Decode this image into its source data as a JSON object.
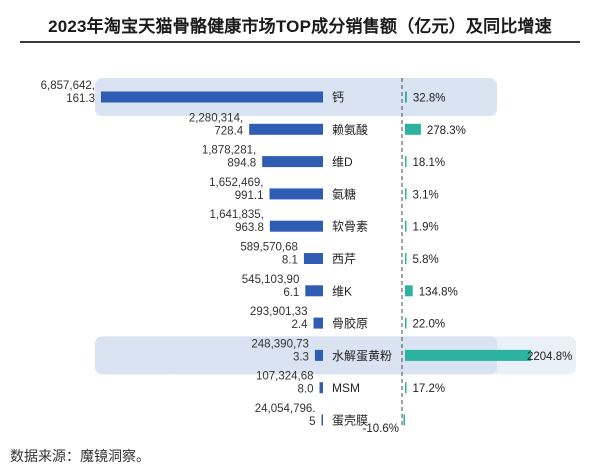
{
  "title": "2023年淘宝天猫骨骼健康市场TOP成分销售额（亿元）及同比增速",
  "footnote": "数据来源：魔镜洞察。",
  "colors": {
    "sales_bar": "#2f5db3",
    "growth_bar": "#2bb3a0",
    "highlight": "#d9e3f1",
    "axis": "#4a4a4a"
  },
  "chart_data": {
    "type": "bar",
    "title": "2023年淘宝天猫骨骼健康市场TOP成分销售额（亿元）及同比增速",
    "categories": [
      "钙",
      "赖氨酸",
      "维D",
      "氨糖",
      "软骨素",
      "西芹",
      "维K",
      "骨胶原",
      "水解蛋黄粉",
      "MSM",
      "蛋壳膜"
    ],
    "highlighted": [
      "钙",
      "水解蛋黄粉"
    ],
    "series": [
      {
        "name": "销售额",
        "values": [
          6857642161.3,
          2280314728.4,
          1878281894.8,
          1652469991.1,
          1641835963.8,
          589570688.1,
          545103906.1,
          293901332.4,
          248390733.3,
          107324688.0,
          24054796.5
        ],
        "labels": [
          [
            "6,857,642,",
            "161.3"
          ],
          [
            "2,280,314,",
            "728.4"
          ],
          [
            "1,878,281,",
            "894.8"
          ],
          [
            "1,652,469,",
            "991.1"
          ],
          [
            "1,641,835,",
            "963.8"
          ],
          [
            "589,570,68",
            "8.1"
          ],
          [
            "545,103,90",
            "6.1"
          ],
          [
            "293,901,33",
            "2.4"
          ],
          [
            "248,390,73",
            "3.3"
          ],
          [
            "107,324,68",
            "8.0"
          ],
          [
            "24,054,796.",
            "5"
          ]
        ]
      },
      {
        "name": "同比增速",
        "values": [
          32.8,
          278.3,
          18.1,
          3.1,
          1.9,
          5.8,
          134.8,
          22.0,
          2204.8,
          17.2,
          -10.6
        ],
        "labels": [
          "32.8%",
          "278.3%",
          "18.1%",
          "3.1%",
          "1.9%",
          "5.8%",
          "134.8%",
          "22.0%",
          "2204.8%",
          "17.2%",
          "-10.6%"
        ]
      }
    ]
  }
}
